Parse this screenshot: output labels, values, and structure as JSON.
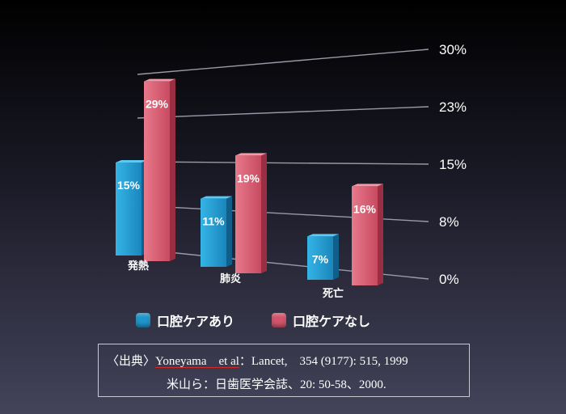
{
  "chart_data": {
    "type": "bar",
    "categories": [
      "発熱",
      "肺炎",
      "死亡"
    ],
    "series": [
      {
        "name": "口腔ケアあり",
        "values": [
          15,
          11,
          7
        ]
      },
      {
        "name": "口腔ケアなし",
        "values": [
          29,
          19,
          16
        ]
      }
    ],
    "data_labels": [
      [
        "15%",
        "11%",
        "7%"
      ],
      [
        "29%",
        "19%",
        "16%"
      ]
    ],
    "y_ticks": [
      "0%",
      "8%",
      "15%",
      "23%",
      "30%"
    ],
    "ylim": [
      0,
      30
    ],
    "title": "",
    "xlabel": "",
    "ylabel": "",
    "grid": true,
    "legend_position": "bottom",
    "colors": {
      "with_care": "#1f95c9",
      "without_care": "#d3556b"
    }
  },
  "legend": {
    "with_care": "口腔ケアあり",
    "without_care": "口腔ケアなし"
  },
  "source": {
    "prefix": "〈出典〉",
    "authors": "Yoneyama　et al",
    "journal": "：Lancet,　354 (9177): 515, 1999",
    "line2": "米山ら：日歯医学会誌、20: 50-58、2000."
  }
}
